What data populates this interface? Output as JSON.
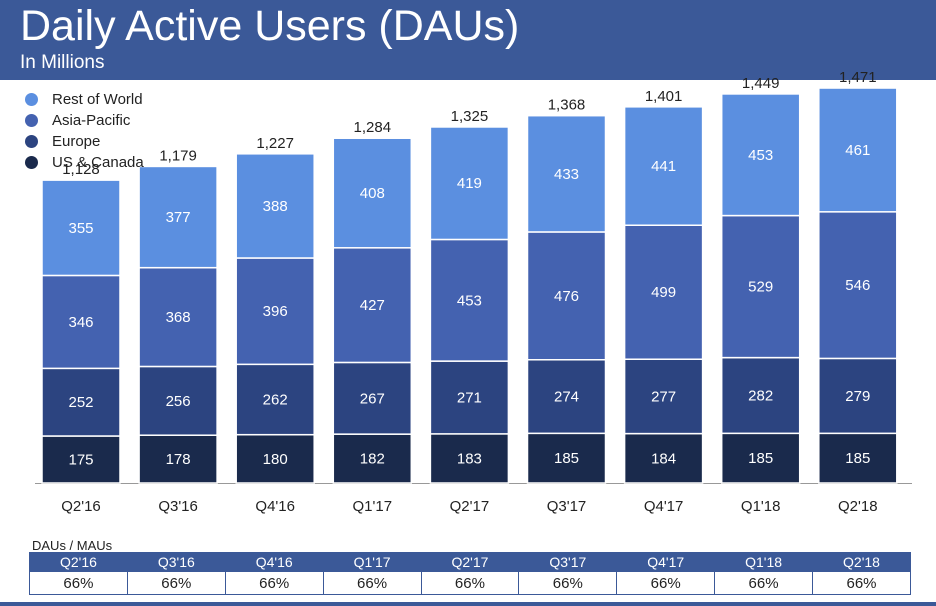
{
  "header": {
    "title": "Daily Active Users (DAUs)",
    "subtitle": "In Millions"
  },
  "colors": {
    "header_bg": "#3b5998",
    "rest_of_world": "#5b8fe0",
    "asia_pacific": "#4462b0",
    "europe": "#2c4480",
    "us_canada": "#1a2a4c"
  },
  "chart_data": {
    "type": "bar",
    "stacked": true,
    "title": "Daily Active Users (DAUs)",
    "subtitle": "In Millions",
    "xlabel": "",
    "ylabel": "",
    "legend_position": "top-left",
    "categories": [
      "Q2'16",
      "Q3'16",
      "Q4'16",
      "Q1'17",
      "Q2'17",
      "Q3'17",
      "Q4'17",
      "Q1'18",
      "Q2'18"
    ],
    "series": [
      {
        "name": "US & Canada",
        "values": [
          175,
          178,
          180,
          182,
          183,
          185,
          184,
          185,
          185
        ]
      },
      {
        "name": "Europe",
        "values": [
          252,
          256,
          262,
          267,
          271,
          274,
          277,
          282,
          279
        ]
      },
      {
        "name": "Asia-Pacific",
        "values": [
          346,
          368,
          396,
          427,
          453,
          476,
          499,
          529,
          546
        ]
      },
      {
        "name": "Rest of World",
        "values": [
          355,
          377,
          388,
          408,
          419,
          433,
          441,
          453,
          461
        ]
      }
    ],
    "totals": [
      "1,128",
      "1,179",
      "1,227",
      "1,284",
      "1,325",
      "1,368",
      "1,401",
      "1,449",
      "1,471"
    ],
    "legend": [
      "Rest of World",
      "Asia-Pacific",
      "Europe",
      "US & Canada"
    ]
  },
  "ratio_table": {
    "label": "DAUs / MAUs",
    "headers": [
      "Q2'16",
      "Q3'16",
      "Q4'16",
      "Q1'17",
      "Q2'17",
      "Q3'17",
      "Q4'17",
      "Q1'18",
      "Q2'18"
    ],
    "values": [
      "66%",
      "66%",
      "66%",
      "66%",
      "66%",
      "66%",
      "66%",
      "66%",
      "66%"
    ]
  }
}
